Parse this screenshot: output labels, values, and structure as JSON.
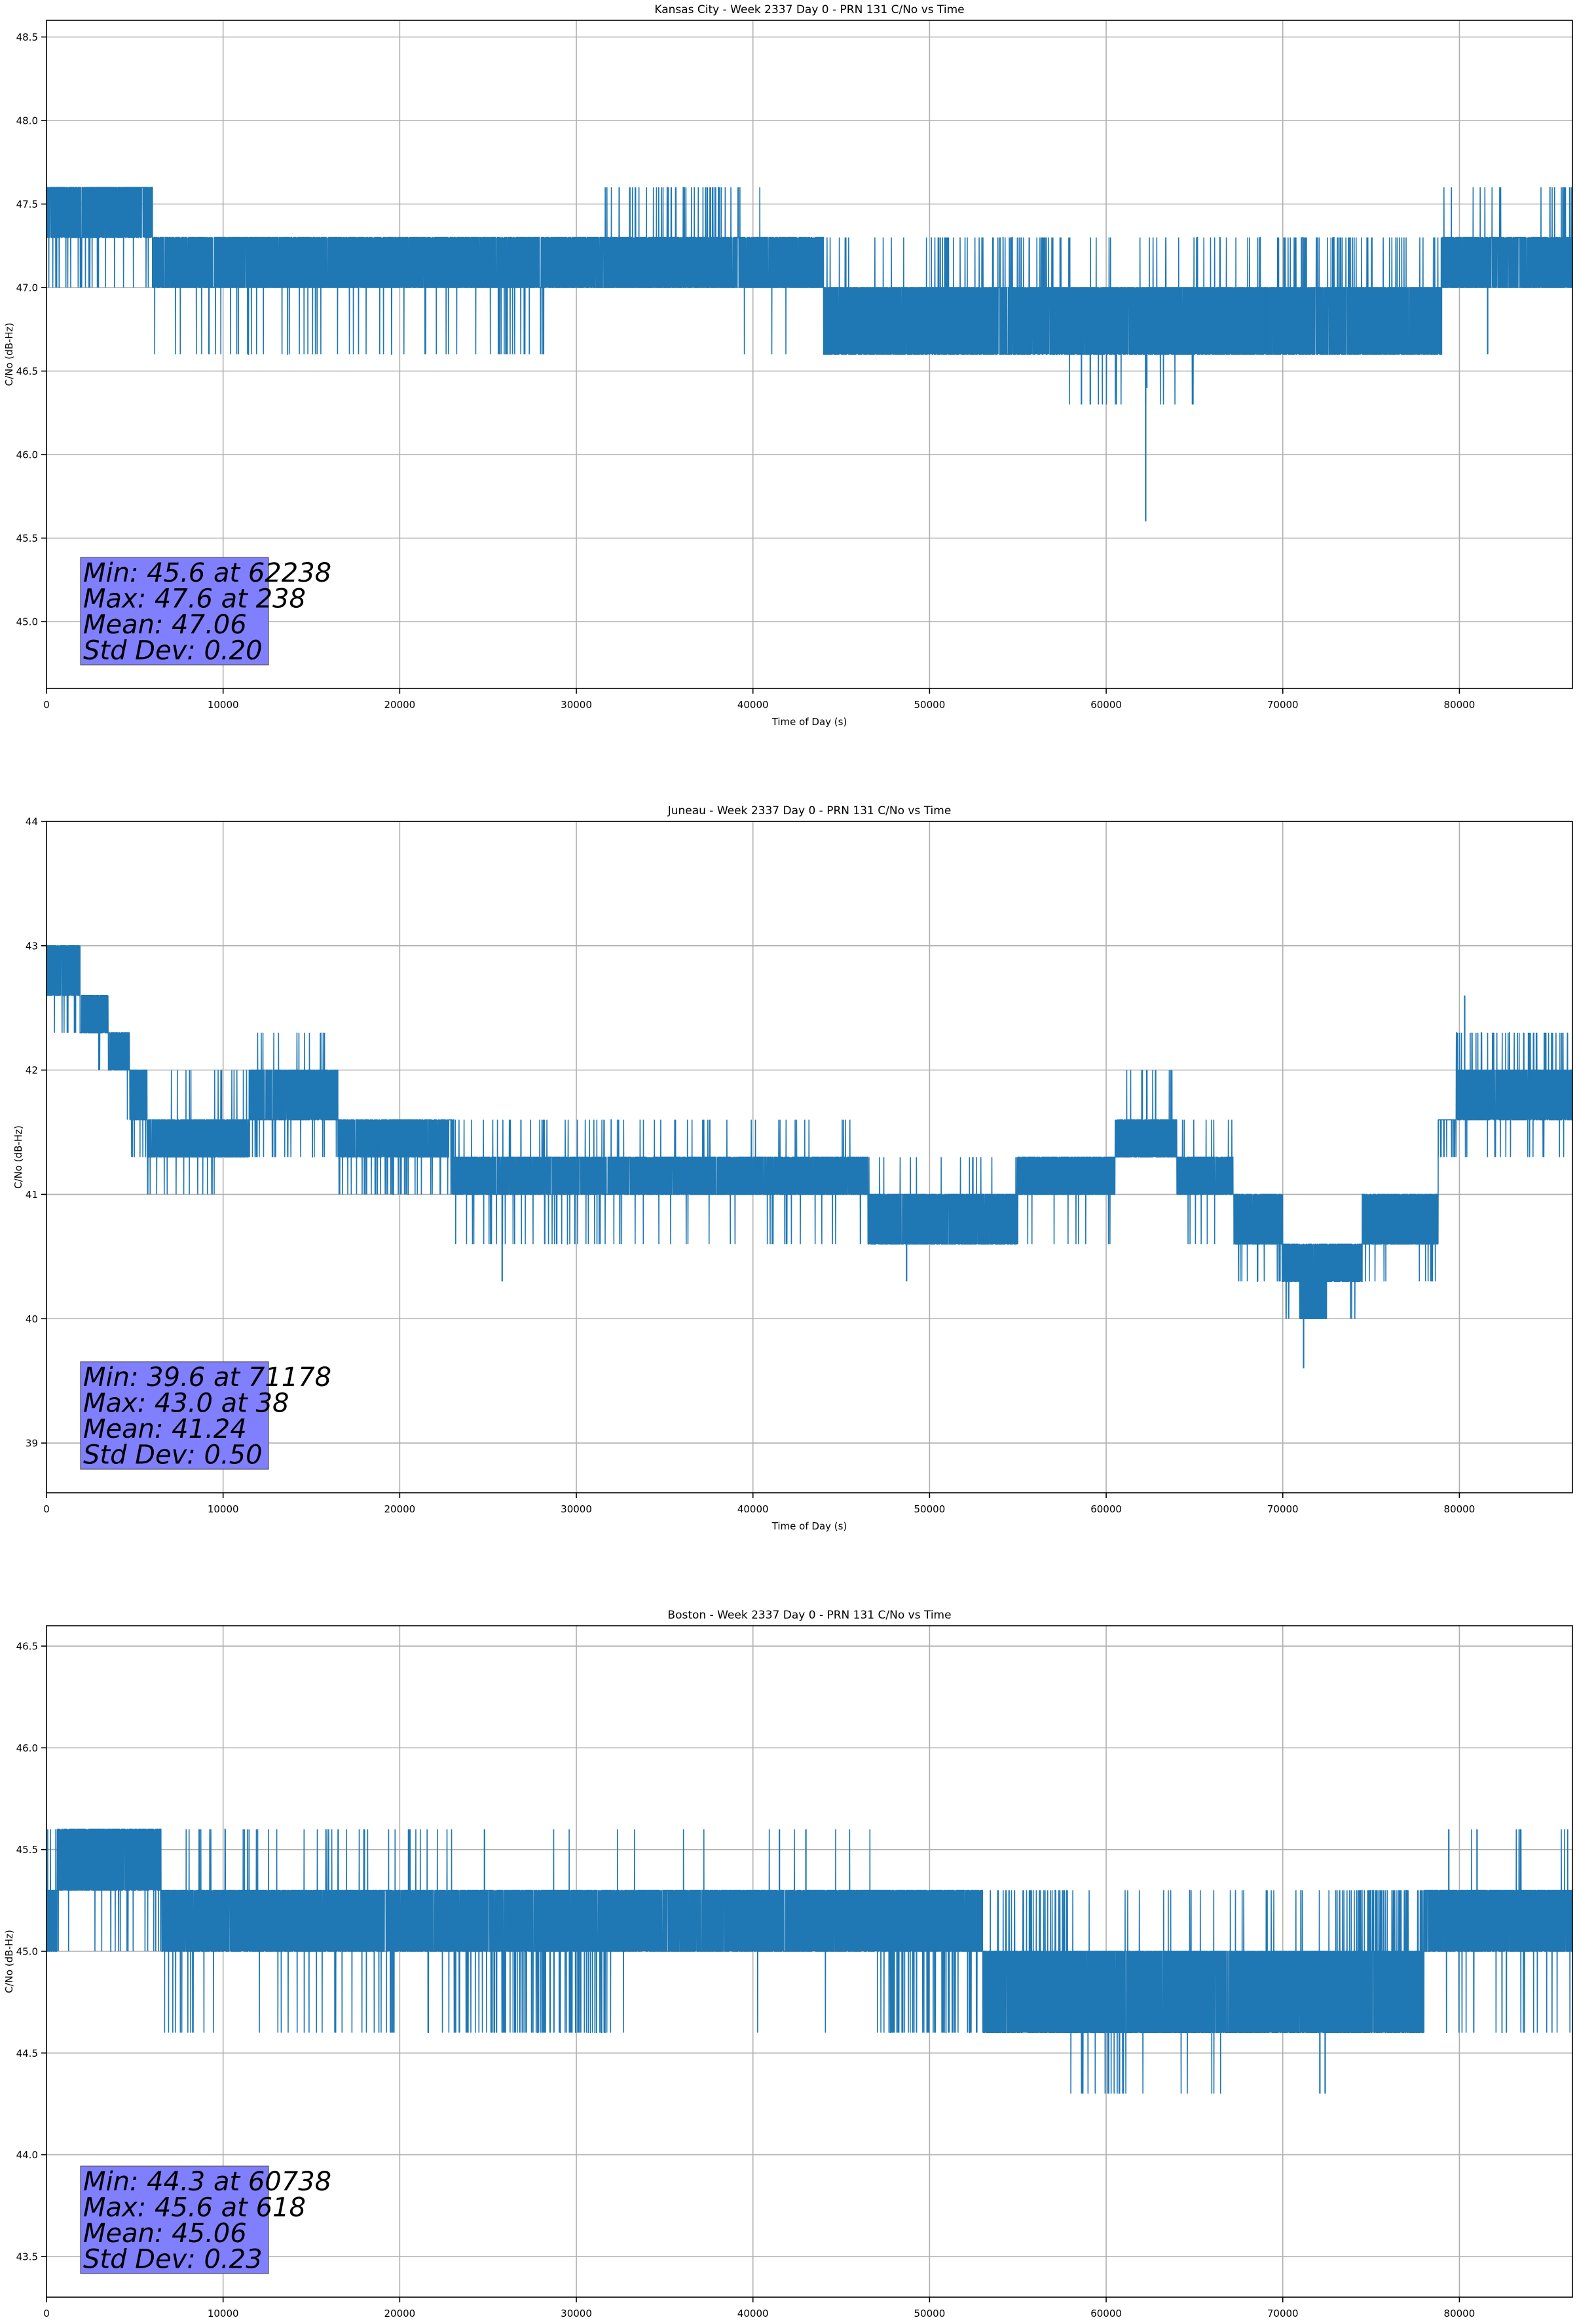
{
  "chart_data": [
    {
      "type": "line",
      "title": "Kansas City - Week 2337 Day 0 - PRN 131 C/No vs Time",
      "xlabel": "Time of Day (s)",
      "ylabel": "C/No (dB-Hz)",
      "xlim": [
        0,
        86400
      ],
      "ylim": [
        44.6,
        48.6
      ],
      "xticks": [
        0,
        10000,
        20000,
        30000,
        40000,
        50000,
        60000,
        70000,
        80000
      ],
      "yticks": [
        45.0,
        45.5,
        46.0,
        46.5,
        47.0,
        47.5,
        48.0,
        48.5
      ],
      "ytick_decimals": 1,
      "grid": true,
      "color": "#1f77b4",
      "stats_box_color": "#8080ff",
      "stats": [
        "Min: 45.6 at 62238",
        "Max: 47.6 at 238",
        "Mean: 47.06",
        "Std Dev: 0.20"
      ],
      "series": [
        {
          "segments": [
            {
              "x0": 0,
              "x1": 6000,
              "lo": 47.3,
              "hi": 47.6,
              "pool": [
                47.0
              ],
              "pfreq": 0.02,
              "spool": [
                47.0
              ],
              "sfreq": 0.004
            },
            {
              "x0": 6000,
              "x1": 29000,
              "lo": 47.0,
              "hi": 47.3,
              "pool": [
                46.6
              ],
              "pfreq": 0.025,
              "spool": [
                47.6
              ],
              "sfreq": 0.0
            },
            {
              "x0": 29000,
              "x1": 31600,
              "lo": 47.0,
              "hi": 47.3,
              "pool": [
                47.6
              ],
              "pfreq": 0.0,
              "spool": [
                46.6
              ],
              "sfreq": 0.0
            },
            {
              "x0": 31600,
              "x1": 34000,
              "lo": 47.0,
              "hi": 47.3,
              "pool": [
                47.6
              ],
              "pfreq": 0.03,
              "spool": [
                46.6
              ],
              "sfreq": 0.0
            },
            {
              "x0": 34000,
              "x1": 39500,
              "lo": 47.0,
              "hi": 47.3,
              "pool": [
                47.6
              ],
              "pfreq": 0.05,
              "spool": [
                46.6
              ],
              "sfreq": 0.0
            },
            {
              "x0": 39500,
              "x1": 44000,
              "lo": 47.0,
              "hi": 47.3,
              "pool": [
                47.6,
                46.6
              ],
              "pfreq": 0.01,
              "spool": [
                46.6
              ],
              "sfreq": 0.0
            },
            {
              "x0": 44000,
              "x1": 50000,
              "lo": 46.6,
              "hi": 47.0,
              "pool": [
                47.3
              ],
              "pfreq": 0.01,
              "spool": [
                46.6
              ],
              "sfreq": 0.0
            },
            {
              "x0": 50000,
              "x1": 57000,
              "lo": 46.6,
              "hi": 47.0,
              "pool": [
                47.3
              ],
              "pfreq": 0.04,
              "spool": [
                46.6
              ],
              "sfreq": 0.0
            },
            {
              "x0": 57000,
              "x1": 65000,
              "lo": 46.6,
              "hi": 47.0,
              "pool": [
                47.3,
                46.3
              ],
              "pfreq": 0.03,
              "spool": [
                46.6
              ],
              "sfreq": 0.0
            },
            {
              "x0": 65000,
              "x1": 74000,
              "lo": 46.6,
              "hi": 47.0,
              "pool": [
                47.3
              ],
              "pfreq": 0.05,
              "spool": [
                46.6
              ],
              "sfreq": 0.0
            },
            {
              "x0": 74000,
              "x1": 79000,
              "lo": 46.6,
              "hi": 47.0,
              "pool": [
                47.3
              ],
              "pfreq": 0.04,
              "spool": [
                46.6
              ],
              "sfreq": 0.0
            },
            {
              "x0": 79000,
              "x1": 85000,
              "lo": 47.0,
              "hi": 47.3,
              "pool": [
                47.6
              ],
              "pfreq": 0.01,
              "spool": [
                46.6
              ],
              "sfreq": 0.0
            },
            {
              "x0": 85000,
              "x1": 86400,
              "lo": 47.0,
              "hi": 47.3,
              "pool": [
                47.6
              ],
              "pfreq": 0.06,
              "spool": [
                46.6
              ],
              "sfreq": 0.0
            }
          ],
          "spikes": [
            {
              "x": 58600,
              "y": 46.3
            },
            {
              "x": 59100,
              "y": 46.3
            },
            {
              "x": 62238,
              "y": 45.6
            },
            {
              "x": 62300,
              "y": 46.4
            },
            {
              "x": 9200,
              "y": 46.6
            },
            {
              "x": 69000,
              "y": 46.6
            },
            {
              "x": 81600,
              "y": 46.6
            }
          ]
        }
      ]
    },
    {
      "type": "line",
      "title": "Juneau - Week 2337 Day 0 - PRN 131 C/No vs Time",
      "xlabel": "Time of Day (s)",
      "ylabel": "C/No (dB-Hz)",
      "xlim": [
        0,
        86400
      ],
      "ylim": [
        38.6,
        44.0
      ],
      "xticks": [
        0,
        10000,
        20000,
        30000,
        40000,
        50000,
        60000,
        70000,
        80000
      ],
      "yticks": [
        39,
        40,
        41,
        42,
        43,
        44
      ],
      "ytick_decimals": 0,
      "grid": true,
      "color": "#1f77b4",
      "stats_box_color": "#8080ff",
      "stats": [
        "Min: 39.6 at 71178",
        "Max: 43.0 at 38",
        "Mean: 41.24",
        "Std Dev: 0.50"
      ],
      "series": [
        {
          "segments": [
            {
              "x0": 0,
              "x1": 1900,
              "lo": 42.6,
              "hi": 43.0,
              "pool": [
                42.3
              ],
              "pfreq": 0.03,
              "spool": [
                42.3
              ],
              "sfreq": 0.0
            },
            {
              "x0": 1900,
              "x1": 3500,
              "lo": 42.3,
              "hi": 42.6,
              "pool": [
                42.0
              ],
              "pfreq": 0.02,
              "spool": [
                42.0
              ],
              "sfreq": 0.0
            },
            {
              "x0": 3500,
              "x1": 4700,
              "lo": 42.0,
              "hi": 42.3,
              "pool": [
                41.6
              ],
              "pfreq": 0.01,
              "spool": [
                41.6
              ],
              "sfreq": 0.0
            },
            {
              "x0": 4700,
              "x1": 5700,
              "lo": 41.6,
              "hi": 42.0,
              "pool": [
                41.3
              ],
              "pfreq": 0.03,
              "spool": [
                41.3
              ],
              "sfreq": 0.0
            },
            {
              "x0": 5700,
              "x1": 9500,
              "lo": 41.3,
              "hi": 41.6,
              "pool": [
                42.0,
                41.0
              ],
              "pfreq": 0.03,
              "spool": [
                41.0
              ],
              "sfreq": 0.0
            },
            {
              "x0": 9500,
              "x1": 11500,
              "lo": 41.3,
              "hi": 41.6,
              "pool": [
                42.0
              ],
              "pfreq": 0.04,
              "spool": [
                41.0
              ],
              "sfreq": 0.0
            },
            {
              "x0": 11500,
              "x1": 16000,
              "lo": 41.6,
              "hi": 42.0,
              "pool": [
                42.3,
                41.3
              ],
              "pfreq": 0.05,
              "spool": [
                41.3
              ],
              "sfreq": 0.0
            },
            {
              "x0": 16000,
              "x1": 16500,
              "lo": 41.6,
              "hi": 42.0,
              "pool": [
                41.3
              ],
              "pfreq": 0.01,
              "spool": [
                41.3
              ],
              "sfreq": 0.0
            },
            {
              "x0": 16500,
              "x1": 19000,
              "lo": 41.3,
              "hi": 41.6,
              "pool": [
                41.0
              ],
              "pfreq": 0.03,
              "spool": [
                41.0
              ],
              "sfreq": 0.0
            },
            {
              "x0": 19000,
              "x1": 23000,
              "lo": 41.3,
              "hi": 41.6,
              "pool": [
                41.0
              ],
              "pfreq": 0.05,
              "spool": [
                41.0
              ],
              "sfreq": 0.0
            },
            {
              "x0": 23000,
              "x1": 32000,
              "lo": 41.0,
              "hi": 41.3,
              "pool": [
                40.6,
                41.6
              ],
              "pfreq": 0.05,
              "spool": [
                41.6
              ],
              "sfreq": 0.0
            },
            {
              "x0": 32000,
              "x1": 46500,
              "lo": 41.0,
              "hi": 41.3,
              "pool": [
                40.6,
                41.6
              ],
              "pfreq": 0.025,
              "spool": [
                41.6
              ],
              "sfreq": 0.0
            },
            {
              "x0": 46500,
              "x1": 55000,
              "lo": 40.6,
              "hi": 41.0,
              "pool": [
                41.3
              ],
              "pfreq": 0.01,
              "spool": [
                40.3
              ],
              "sfreq": 0.0
            },
            {
              "x0": 55000,
              "x1": 60500,
              "lo": 41.0,
              "hi": 41.3,
              "pool": [
                40.6
              ],
              "pfreq": 0.02,
              "spool": [
                41.6
              ],
              "sfreq": 0.0
            },
            {
              "x0": 60500,
              "x1": 64000,
              "lo": 41.3,
              "hi": 41.6,
              "pool": [
                42.0
              ],
              "pfreq": 0.02,
              "spool": [
                41.0
              ],
              "sfreq": 0.0
            },
            {
              "x0": 64000,
              "x1": 67200,
              "lo": 41.0,
              "hi": 41.3,
              "pool": [
                41.6,
                40.6
              ],
              "pfreq": 0.03,
              "spool": [
                41.6
              ],
              "sfreq": 0.0
            },
            {
              "x0": 67200,
              "x1": 70000,
              "lo": 40.6,
              "hi": 41.0,
              "pool": [
                40.3
              ],
              "pfreq": 0.03,
              "spool": [
                40.3
              ],
              "sfreq": 0.0
            },
            {
              "x0": 70000,
              "x1": 71000,
              "lo": 40.3,
              "hi": 40.6,
              "pool": [
                40.0
              ],
              "pfreq": 0.02,
              "spool": [
                40.0
              ],
              "sfreq": 0.0
            },
            {
              "x0": 71000,
              "x1": 72500,
              "lo": 40.0,
              "hi": 40.6,
              "pool": [
                40.0
              ],
              "pfreq": 0.0,
              "spool": [
                40.0
              ],
              "sfreq": 0.0
            },
            {
              "x0": 72500,
              "x1": 74500,
              "lo": 40.3,
              "hi": 40.6,
              "pool": [
                40.0
              ],
              "pfreq": 0.02,
              "spool": [
                40.0
              ],
              "sfreq": 0.0
            },
            {
              "x0": 74500,
              "x1": 78800,
              "lo": 40.6,
              "hi": 41.0,
              "pool": [
                40.3
              ],
              "pfreq": 0.03,
              "spool": [
                40.3
              ],
              "sfreq": 0.0
            },
            {
              "x0": 78800,
              "x1": 79800,
              "lo": 41.6,
              "hi": 41.6,
              "pool": [
                41.3
              ],
              "pfreq": 0.05,
              "spool": [
                41.3
              ],
              "sfreq": 0.0
            },
            {
              "x0": 79800,
              "x1": 86400,
              "lo": 41.6,
              "hi": 42.0,
              "pool": [
                41.3,
                42.3
              ],
              "pfreq": 0.07,
              "spool": [
                41.3
              ],
              "sfreq": 0.0
            }
          ],
          "spikes": [
            {
              "x": 25800,
              "y": 40.3
            },
            {
              "x": 48700,
              "y": 40.3
            },
            {
              "x": 71178,
              "y": 39.6
            },
            {
              "x": 80300,
              "y": 42.6
            },
            {
              "x": 62300,
              "y": 42.0
            },
            {
              "x": 62800,
              "y": 42.0
            }
          ]
        }
      ]
    },
    {
      "type": "line",
      "title": "Boston - Week 2337 Day 0 - PRN 131 C/No vs Time",
      "xlabel": "Time of Day (s)",
      "ylabel": "C/No (dB-Hz)",
      "xlim": [
        0,
        86400
      ],
      "ylim": [
        43.3,
        46.6
      ],
      "xticks": [
        0,
        10000,
        20000,
        30000,
        40000,
        50000,
        60000,
        70000,
        80000
      ],
      "yticks": [
        43.5,
        44.0,
        44.5,
        45.0,
        45.5,
        46.0,
        46.5
      ],
      "ytick_decimals": 1,
      "grid": true,
      "color": "#1f77b4",
      "stats_box_color": "#8080ff",
      "stats": [
        "Min: 44.3 at 60738",
        "Max: 45.6 at 618",
        "Mean: 45.06",
        "Std Dev: 0.23"
      ],
      "series": [
        {
          "segments": [
            {
              "x0": 0,
              "x1": 600,
              "lo": 45.0,
              "hi": 45.3,
              "pool": [
                45.6
              ],
              "pfreq": 0.05,
              "spool": [
                45.6
              ],
              "sfreq": 0.0
            },
            {
              "x0": 600,
              "x1": 6500,
              "lo": 45.3,
              "hi": 45.6,
              "pool": [
                45.0
              ],
              "pfreq": 0.02,
              "spool": [
                45.0
              ],
              "sfreq": 0.0
            },
            {
              "x0": 6500,
              "x1": 23000,
              "lo": 45.0,
              "hi": 45.3,
              "pool": [
                45.6,
                44.6
              ],
              "pfreq": 0.035,
              "spool": [
                45.6
              ],
              "sfreq": 0.0
            },
            {
              "x0": 23000,
              "x1": 32000,
              "lo": 45.0,
              "hi": 45.3,
              "pool": [
                44.6
              ],
              "pfreq": 0.07,
              "spool": [
                45.6
              ],
              "sfreq": 0.004
            },
            {
              "x0": 32000,
              "x1": 47000,
              "lo": 45.0,
              "hi": 45.3,
              "pool": [
                45.6,
                44.6
              ],
              "pfreq": 0.01,
              "spool": [
                45.6
              ],
              "sfreq": 0.0
            },
            {
              "x0": 47000,
              "x1": 53000,
              "lo": 45.0,
              "hi": 45.3,
              "pool": [
                44.6
              ],
              "pfreq": 0.07,
              "spool": [
                44.6
              ],
              "sfreq": 0.0
            },
            {
              "x0": 53000,
              "x1": 58000,
              "lo": 44.6,
              "hi": 45.0,
              "pool": [
                45.3
              ],
              "pfreq": 0.05,
              "spool": [
                45.3
              ],
              "sfreq": 0.0
            },
            {
              "x0": 58000,
              "x1": 67000,
              "lo": 44.6,
              "hi": 45.0,
              "pool": [
                44.3,
                45.3
              ],
              "pfreq": 0.04,
              "spool": [
                45.3
              ],
              "sfreq": 0.0
            },
            {
              "x0": 67000,
              "x1": 73000,
              "lo": 44.6,
              "hi": 45.0,
              "pool": [
                45.3
              ],
              "pfreq": 0.02,
              "spool": [
                45.3
              ],
              "sfreq": 0.0
            },
            {
              "x0": 73000,
              "x1": 78000,
              "lo": 44.6,
              "hi": 45.0,
              "pool": [
                45.3
              ],
              "pfreq": 0.08,
              "spool": [
                45.3
              ],
              "sfreq": 0.0
            },
            {
              "x0": 78000,
              "x1": 86400,
              "lo": 45.0,
              "hi": 45.3,
              "pool": [
                44.6,
                45.6
              ],
              "pfreq": 0.02,
              "spool": [
                45.6
              ],
              "sfreq": 0.0
            }
          ],
          "spikes": [
            {
              "x": 60738,
              "y": 44.3
            },
            {
              "x": 72100,
              "y": 44.3
            },
            {
              "x": 72400,
              "y": 44.3
            },
            {
              "x": 18000,
              "y": 45.6
            },
            {
              "x": 20500,
              "y": 45.6
            },
            {
              "x": 24800,
              "y": 45.6
            },
            {
              "x": 41500,
              "y": 45.6
            },
            {
              "x": 43000,
              "y": 45.6
            },
            {
              "x": 79400,
              "y": 45.6
            },
            {
              "x": 81000,
              "y": 45.6
            }
          ]
        }
      ]
    }
  ]
}
